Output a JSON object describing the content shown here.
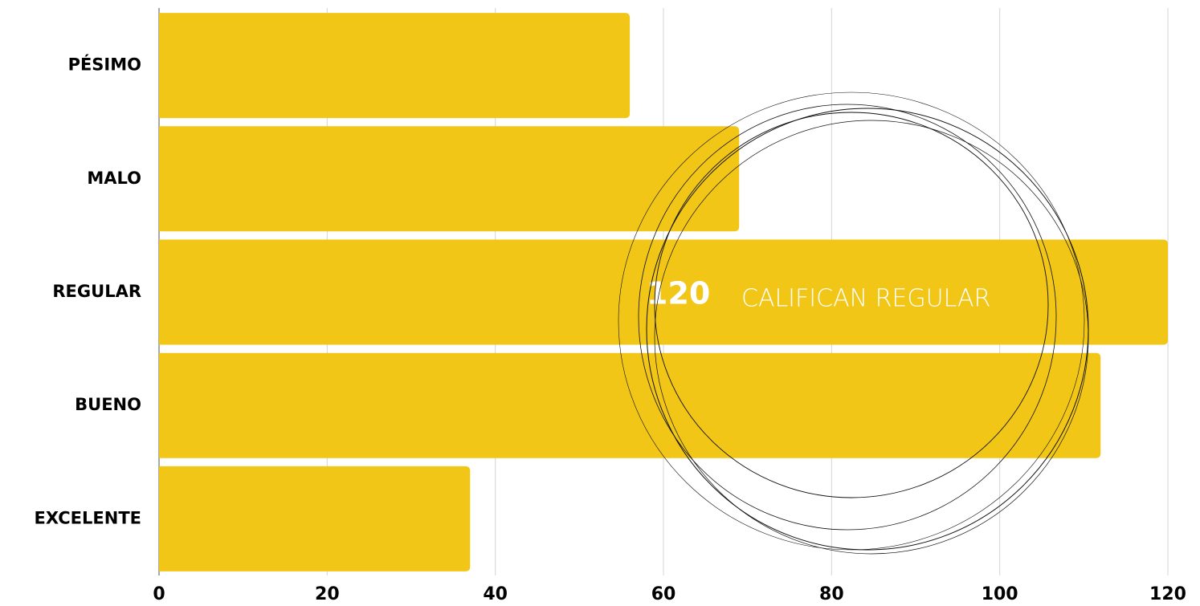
{
  "chart_data": {
    "type": "bar",
    "orientation": "horizontal",
    "categories": [
      "PÉSIMO",
      "MALO",
      "REGULAR",
      "BUENO",
      "EXCELENTE"
    ],
    "values": [
      56,
      69,
      120,
      112,
      37
    ],
    "color": "#f2c617",
    "xlim": [
      0,
      120
    ],
    "xticks": [
      0,
      20,
      40,
      60,
      80,
      100,
      120
    ],
    "grid": true,
    "annotation": "CALIFICAN REGULAR"
  }
}
